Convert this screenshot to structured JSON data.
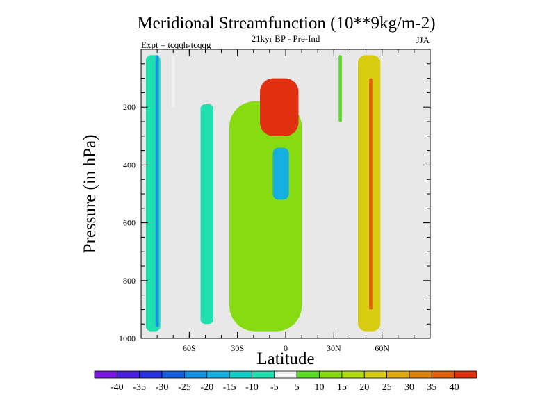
{
  "chart_data": {
    "type": "heatmap",
    "title": "Meridional Streamfunction (10**9kg/m-2)",
    "subtitle": "21kyr BP - Pre-Ind",
    "left_label": "Expt = tcqqh-tcqqg",
    "right_label": "JJA",
    "xlabel": "Latitude",
    "ylabel": "Pressure (in hPa)",
    "xlim": [
      -90,
      90
    ],
    "ylim": [
      1000,
      0
    ],
    "x_ticks": [
      {
        "value": -60,
        "label": "60S"
      },
      {
        "value": -30,
        "label": "30S"
      },
      {
        "value": 0,
        "label": "0"
      },
      {
        "value": 30,
        "label": "30N"
      },
      {
        "value": 60,
        "label": "60N"
      }
    ],
    "y_ticks": [
      {
        "value": 200,
        "label": "200"
      },
      {
        "value": 400,
        "label": "400"
      },
      {
        "value": 600,
        "label": "600"
      },
      {
        "value": 800,
        "label": "800"
      },
      {
        "value": 1000,
        "label": "1000"
      }
    ],
    "colorbar": {
      "levels": [
        "-40",
        "-35",
        "-30",
        "-25",
        "-20",
        "-15",
        "-10",
        "-5",
        "5",
        "10",
        "15",
        "20",
        "25",
        "30",
        "35",
        "40"
      ],
      "colors": [
        "#7a16e0",
        "#4a1ee0",
        "#2630e0",
        "#1660e0",
        "#1690e0",
        "#16b0e0",
        "#10cfc8",
        "#20e0b0",
        "#f2f2f2",
        "#5cdc28",
        "#86dc10",
        "#b0dc10",
        "#d8cc10",
        "#e0aa10",
        "#e08410",
        "#e06010",
        "#e03010"
      ]
    },
    "background_color": "#e8e8e8",
    "features": [
      {
        "name": "SH polar band",
        "lat": [
          -87,
          -78
        ],
        "p": [
          20,
          975
        ],
        "value": -10
      },
      {
        "name": "SH polar core",
        "lat": [
          -81,
          -79
        ],
        "p": [
          20,
          960
        ],
        "value": -25
      },
      {
        "name": "SH narrow strip",
        "lat": [
          -71,
          -69
        ],
        "p": [
          20,
          200
        ],
        "value": -5
      },
      {
        "name": "SH mid-lat band",
        "lat": [
          -53,
          -45
        ],
        "p": [
          190,
          950
        ],
        "value": -10
      },
      {
        "name": "Tropical positive band",
        "lat": [
          -35,
          10
        ],
        "p": [
          180,
          975
        ],
        "value": 10
      },
      {
        "name": "Upper-level maximum",
        "lat": [
          -16,
          8
        ],
        "p": [
          100,
          300
        ],
        "value": 40
      },
      {
        "name": "Tropical negative core",
        "lat": [
          -8,
          2
        ],
        "p": [
          340,
          520
        ],
        "value": -20
      },
      {
        "name": "NH narrow strip",
        "lat": [
          33,
          35
        ],
        "p": [
          20,
          250
        ],
        "value": 5
      },
      {
        "name": "NH mid-lat band",
        "lat": [
          45,
          59
        ],
        "p": [
          20,
          975
        ],
        "value": 20
      },
      {
        "name": "NH core",
        "lat": [
          52,
          54
        ],
        "p": [
          100,
          900
        ],
        "value": 35
      }
    ]
  }
}
